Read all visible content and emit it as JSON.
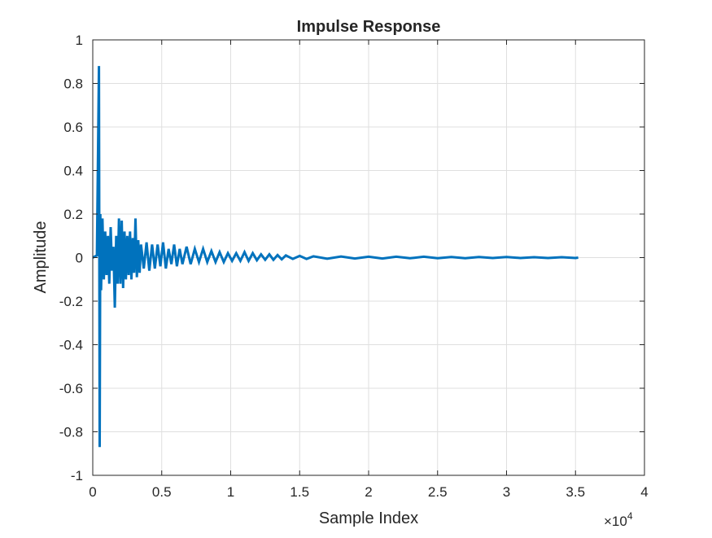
{
  "chart_data": {
    "type": "line",
    "title": "Impulse Response",
    "xlabel": "Sample Index",
    "ylabel": "Amplitude",
    "x_exponent_label": "×10",
    "x_exponent": "4",
    "xlim": [
      0,
      40000
    ],
    "ylim": [
      -1,
      1
    ],
    "xticks": [
      0,
      5000,
      10000,
      15000,
      20000,
      25000,
      30000,
      35000,
      40000
    ],
    "xtick_labels": [
      "0",
      "0.5",
      "1",
      "1.5",
      "2",
      "2.5",
      "3",
      "3.5",
      "4"
    ],
    "yticks": [
      1,
      0.8,
      0.6,
      0.4,
      0.2,
      0,
      -0.2,
      -0.4,
      -0.6,
      -0.8,
      -1
    ],
    "ytick_labels": [
      "1",
      "0.8",
      "0.6",
      "0.4",
      "0.2",
      "0",
      "-0.2",
      "-0.4",
      "-0.6",
      "-0.8",
      "-1"
    ],
    "grid": true,
    "line_color": "#0072BD",
    "series": [
      {
        "x": [
          0,
          300,
          450,
          500,
          550,
          600,
          700,
          800,
          900,
          1000,
          1100,
          1200,
          1300,
          1400,
          1500,
          1600,
          1700,
          1800,
          1900,
          2000,
          2100,
          2200,
          2300,
          2400,
          2500,
          2600,
          2700,
          2800,
          2900,
          3000,
          3100,
          3200,
          3300,
          3400,
          3500,
          3700,
          3900,
          4100,
          4300,
          4500,
          4700,
          4900,
          5100,
          5300,
          5500,
          5700,
          5900,
          6100,
          6300,
          6500,
          6800,
          7100,
          7400,
          7700,
          8000,
          8300,
          8600,
          8900,
          9200,
          9500,
          9800,
          10100,
          10400,
          10700,
          11000,
          11300,
          11600,
          11900,
          12200,
          12500,
          12800,
          13100,
          13400,
          13700,
          14000,
          14500,
          15000,
          15500,
          16000,
          17000,
          18000,
          19000,
          20000,
          21000,
          22000,
          23000,
          24000,
          25000,
          26000,
          27000,
          28000,
          29000,
          30000,
          31000,
          32000,
          33000,
          34000,
          35000,
          35200
        ],
        "y": [
          0.0,
          0.01,
          0.88,
          -0.87,
          0.2,
          -0.15,
          0.18,
          -0.1,
          0.12,
          -0.08,
          0.1,
          -0.12,
          0.14,
          -0.06,
          0.05,
          -0.23,
          0.1,
          -0.12,
          0.18,
          -0.12,
          0.17,
          -0.14,
          0.12,
          -0.1,
          0.1,
          -0.08,
          0.12,
          -0.1,
          0.09,
          -0.07,
          0.18,
          -0.09,
          0.08,
          -0.07,
          0.06,
          -0.05,
          0.07,
          -0.06,
          0.06,
          -0.05,
          0.06,
          -0.04,
          0.07,
          -0.05,
          0.04,
          -0.03,
          0.06,
          -0.04,
          0.04,
          -0.03,
          0.05,
          -0.03,
          0.04,
          -0.02,
          0.04,
          -0.02,
          0.03,
          -0.02,
          0.025,
          -0.02,
          0.02,
          -0.015,
          0.02,
          -0.015,
          0.025,
          -0.015,
          0.02,
          -0.012,
          0.015,
          -0.01,
          0.015,
          -0.01,
          0.012,
          -0.008,
          0.01,
          -0.006,
          0.008,
          -0.006,
          0.006,
          -0.005,
          0.005,
          -0.004,
          0.004,
          -0.004,
          0.004,
          -0.003,
          0.004,
          -0.003,
          0.003,
          -0.003,
          0.003,
          -0.002,
          0.003,
          -0.002,
          0.002,
          -0.002,
          0.002,
          -0.002,
          0.0
        ]
      }
    ]
  }
}
